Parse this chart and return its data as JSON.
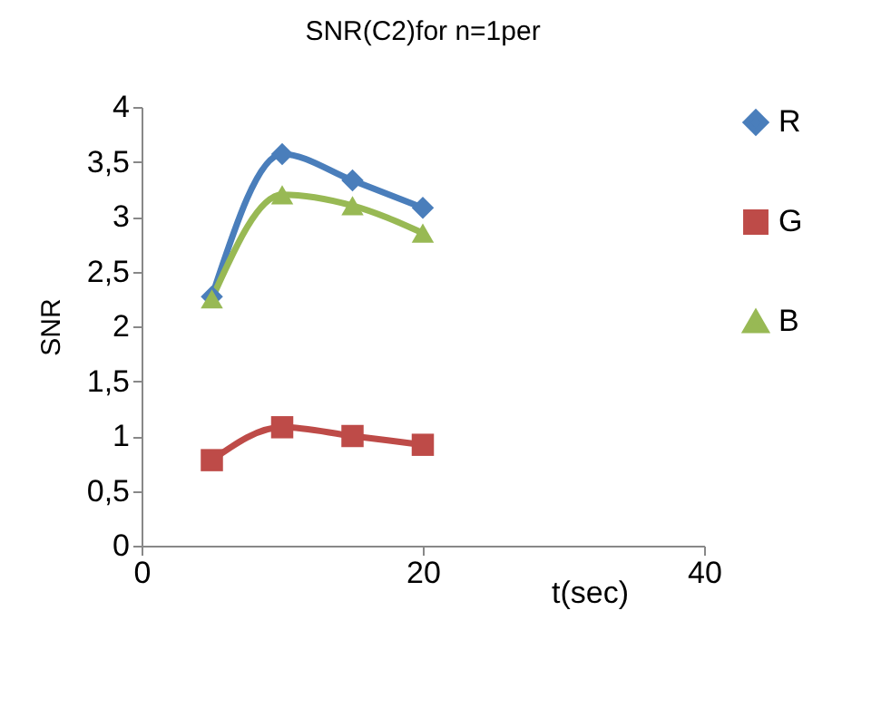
{
  "chart_data": {
    "type": "line",
    "title": "SNR(C2)for n=1per",
    "xlabel": "t(sec)",
    "ylabel": "SNR",
    "x": [
      5,
      10,
      15,
      20
    ],
    "series": [
      {
        "name": "R",
        "color": "#4a7ebb",
        "marker": "diamond",
        "values": [
          2.27,
          3.57,
          3.33,
          3.08
        ]
      },
      {
        "name": "G",
        "color": "#be4b48",
        "marker": "square",
        "values": [
          0.78,
          1.08,
          1.0,
          0.92
        ]
      },
      {
        "name": "B",
        "color": "#98b954",
        "marker": "triangle",
        "values": [
          2.25,
          3.2,
          3.1,
          2.85
        ]
      }
    ],
    "xlim": [
      0,
      40
    ],
    "xticks": [
      0,
      20,
      40
    ],
    "ylim": [
      0,
      4
    ],
    "yticks": [
      0,
      {
        "value": 0.5,
        "label": "0,5"
      },
      1,
      {
        "value": 1.5,
        "label": "1,5"
      },
      2,
      {
        "value": 2.5,
        "label": "2,5"
      },
      3,
      {
        "value": 3.5,
        "label": "3,5"
      },
      4
    ],
    "grid": false,
    "legend": "right",
    "line_style": "solid"
  }
}
